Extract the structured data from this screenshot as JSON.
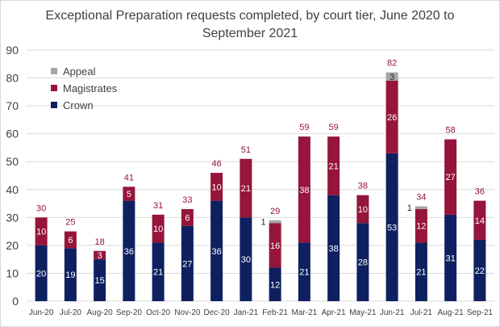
{
  "title_line1": "Exceptional Preparation requests completed, by court tier, June 2020 to",
  "title_line2": "September 2021",
  "colors": {
    "Crown": "#0f2060",
    "Magistrates": "#96153a",
    "Appeal": "#a6a6a6",
    "grid": "#d9d9d9",
    "tick": "#404040"
  },
  "chart_data": {
    "type": "bar",
    "stacked": true,
    "title": "Exceptional Preparation requests completed, by court tier, June 2020 to September 2021",
    "xlabel": "",
    "ylabel": "",
    "ylim": [
      0,
      90
    ],
    "yticks": [
      0,
      10,
      20,
      30,
      40,
      50,
      60,
      70,
      80,
      90
    ],
    "grid": true,
    "legend_position": "top-left",
    "categories": [
      "Jun-20",
      "Jul-20",
      "Aug-20",
      "Sep-20",
      "Oct-20",
      "Nov-20",
      "Dec-20",
      "Jan-21",
      "Feb-21",
      "Mar-21",
      "Apr-21",
      "May-21",
      "Jun-21",
      "Jul-21",
      "Aug-21",
      "Sep-21"
    ],
    "series": [
      {
        "name": "Crown",
        "values": [
          20,
          19,
          15,
          36,
          21,
          27,
          36,
          30,
          12,
          21,
          38,
          28,
          53,
          21,
          31,
          22
        ]
      },
      {
        "name": "Magistrates",
        "values": [
          10,
          6,
          3,
          5,
          10,
          6,
          10,
          21,
          16,
          38,
          21,
          10,
          26,
          12,
          27,
          14
        ]
      },
      {
        "name": "Appeal",
        "values": [
          0,
          0,
          0,
          0,
          0,
          0,
          0,
          0,
          1,
          0,
          0,
          0,
          3,
          1,
          0,
          0
        ]
      }
    ],
    "totals": [
      30,
      25,
      18,
      41,
      31,
      33,
      46,
      51,
      29,
      59,
      59,
      38,
      82,
      34,
      58,
      36
    ],
    "legend_order": [
      "Appeal",
      "Magistrates",
      "Crown"
    ]
  }
}
